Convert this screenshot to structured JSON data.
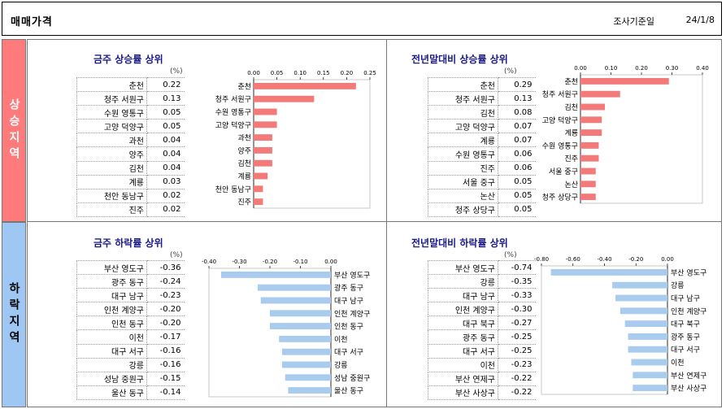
{
  "header": {
    "title": "매매가격",
    "survey_label": "조사기준일",
    "survey_date": "24/1/8"
  },
  "bands": {
    "up": "상승지역",
    "down": "하락지역"
  },
  "colors": {
    "up_bar": "#f47a7a",
    "down_bar": "#a9cbee",
    "band_up": "#ff7b7b",
    "band_down": "#9ec7f3"
  },
  "unit": "(%)",
  "chart_data": [
    {
      "type": "bar",
      "title": "금주 상승률 상위",
      "categories": [
        "춘천",
        "청주 서원구",
        "수원 영통구",
        "고양 덕양구",
        "과천",
        "양주",
        "김천",
        "계룡",
        "천안 동남구",
        "진주"
      ],
      "values": [
        0.22,
        0.13,
        0.05,
        0.05,
        0.04,
        0.04,
        0.04,
        0.03,
        0.02,
        0.02
      ],
      "value_labels": [
        "0.22",
        "0.13",
        "0.05",
        "0.05",
        "0.04",
        "0.04",
        "0.04",
        "0.03",
        "0.02",
        "0.02"
      ],
      "xlim": [
        0,
        0.25
      ],
      "ticks": [
        0.0,
        0.05,
        0.1,
        0.15,
        0.2,
        0.25
      ],
      "tick_labels": [
        "0.00",
        "0.05",
        "0.10",
        "0.15",
        "0.20",
        "0.25"
      ],
      "direction": "up"
    },
    {
      "type": "bar",
      "title": "전년말대비 상승률 상위",
      "categories": [
        "춘천",
        "청주 서원구",
        "김천",
        "고양 덕양구",
        "계룡",
        "수원 영통구",
        "진주",
        "서울 중구",
        "논산",
        "청주 상당구"
      ],
      "values": [
        0.29,
        0.13,
        0.08,
        0.07,
        0.07,
        0.06,
        0.06,
        0.05,
        0.05,
        0.05
      ],
      "value_labels": [
        "0.29",
        "0.13",
        "0.08",
        "0.07",
        "0.07",
        "0.06",
        "0.06",
        "0.05",
        "0.05",
        "0.05"
      ],
      "xlim": [
        0,
        0.4
      ],
      "ticks": [
        0.0,
        0.1,
        0.2,
        0.3,
        0.4
      ],
      "tick_labels": [
        "0.00",
        "0.10",
        "0.20",
        "0.30",
        "0.40"
      ],
      "direction": "up"
    },
    {
      "type": "bar",
      "title": "금주 하락률 상위",
      "categories": [
        "부산 영도구",
        "광주 동구",
        "대구 남구",
        "인천 계양구",
        "인천 동구",
        "이천",
        "대구 서구",
        "강릉",
        "성남 중원구",
        "울산 동구"
      ],
      "values": [
        -0.36,
        -0.24,
        -0.23,
        -0.2,
        -0.2,
        -0.17,
        -0.16,
        -0.16,
        -0.15,
        -0.14
      ],
      "value_labels": [
        "-0.36",
        "-0.24",
        "-0.23",
        "-0.20",
        "-0.20",
        "-0.17",
        "-0.16",
        "-0.16",
        "-0.15",
        "-0.14"
      ],
      "xlim": [
        -0.4,
        0
      ],
      "ticks": [
        -0.4,
        -0.3,
        -0.2,
        -0.1,
        0.0
      ],
      "tick_labels": [
        "-0.40",
        "-0.30",
        "-0.20",
        "-0.10",
        "0.00"
      ],
      "direction": "down"
    },
    {
      "type": "bar",
      "title": "전년말대비 하락률 상위",
      "categories": [
        "부산 영도구",
        "강릉",
        "대구 남구",
        "인천 계양구",
        "대구 북구",
        "광주 동구",
        "대구 서구",
        "이천",
        "부산 연제구",
        "부산 사상구"
      ],
      "values": [
        -0.74,
        -0.35,
        -0.33,
        -0.3,
        -0.27,
        -0.25,
        -0.25,
        -0.23,
        -0.22,
        -0.22
      ],
      "value_labels": [
        "-0.74",
        "-0.35",
        "-0.33",
        "-0.30",
        "-0.27",
        "-0.25",
        "-0.25",
        "-0.23",
        "-0.22",
        "-0.22"
      ],
      "xlim": [
        -0.8,
        0
      ],
      "ticks": [
        -0.8,
        -0.6,
        -0.4,
        -0.2,
        0.0
      ],
      "tick_labels": [
        "-0.80",
        "-0.60",
        "-0.40",
        "-0.20",
        "0.00"
      ],
      "direction": "down"
    }
  ]
}
